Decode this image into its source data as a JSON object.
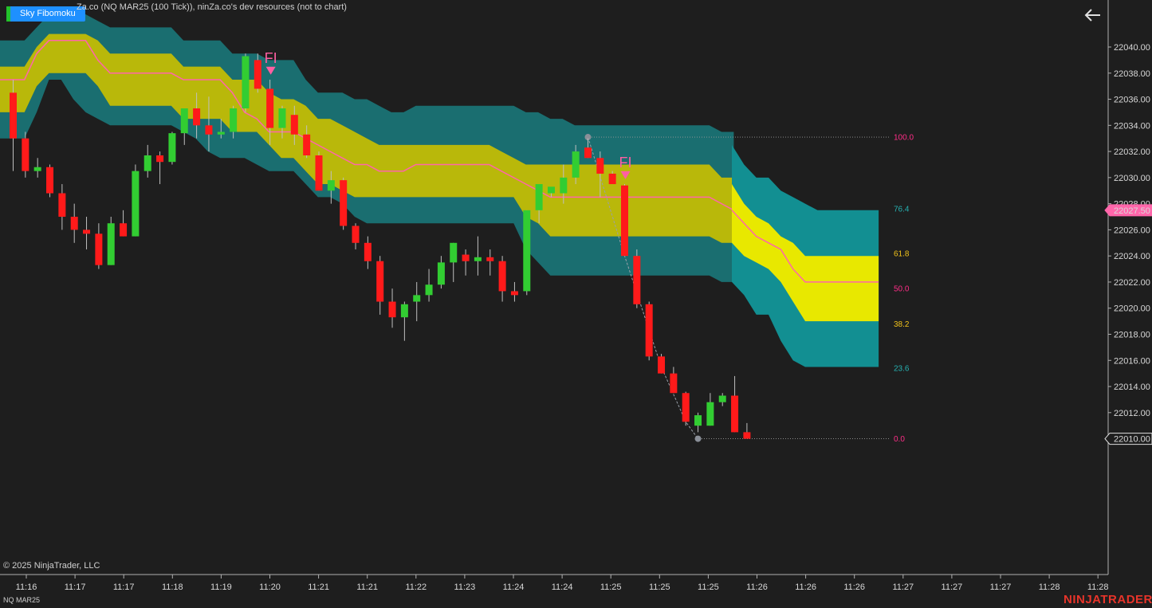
{
  "header": {
    "indicator_button": "Sky Fibomoku",
    "series_title": "Za.co (NQ MAR25 (100 Tick)), ninZa.co's dev resources (not to chart)",
    "back_icon": "arrow-left-icon"
  },
  "footer": {
    "copyright": "© 2025 NinjaTrader, LLC",
    "instrument": "NQ MAR25",
    "brand": "NINJATRADER"
  },
  "colors": {
    "background": "#1e1e1e",
    "up_candle": "#32cd32",
    "down_candle": "#ff1a1a",
    "wick": "#bfbfbf",
    "cloud_outer": "#1a6e70",
    "cloud_outer_projected": "#128f92",
    "cloud_inner": "#b9b80a",
    "cloud_inner_projected": "#e8e800",
    "base_line": "#ff66aa",
    "fib_100": "#ff2d87",
    "fib_76": "#26b0b0",
    "fib_61": "#f2c31a",
    "fib_50": "#ff2d87",
    "fib_38": "#f2c31a",
    "fib_23": "#26b0b0",
    "fib_0": "#ff2d87",
    "fi_marker": "#ff5fa2",
    "price_marker": "#ff66aa",
    "brand": "#e8342a"
  },
  "chart_data": {
    "type": "candlestick",
    "ylim": [
      21999.6,
      22043.6
    ],
    "y_ticks": [
      22010,
      22012,
      22014,
      22016,
      22018,
      22020,
      22022,
      22024,
      22026,
      22028,
      22030,
      22032,
      22034,
      22036,
      22038,
      22040
    ],
    "y_tick_labels": [
      "22010.00",
      "22012.00",
      "22014.00",
      "22016.00",
      "22018.00",
      "22020.00",
      "22022.00",
      "22024.00",
      "22026.00",
      "22028.00",
      "22030.00",
      "22032.00",
      "22034.00",
      "22036.00",
      "22038.00",
      "22040.00"
    ],
    "x_tick_labels": [
      "11:16",
      "11:17",
      "11:17",
      "11:18",
      "11:19",
      "11:20",
      "11:21",
      "11:21",
      "11:22",
      "11:23",
      "11:24",
      "11:24",
      "11:25",
      "11:25",
      "11:25",
      "11:26",
      "11:26",
      "11:26",
      "11:27",
      "11:27",
      "11:27",
      "11:28",
      "11:28"
    ],
    "candles": [
      {
        "o": 22036.5,
        "h": 22037.5,
        "l": 22030.5,
        "c": 22033.0
      },
      {
        "o": 22033.0,
        "h": 22033.5,
        "l": 22030.0,
        "c": 22030.5
      },
      {
        "o": 22030.5,
        "h": 22031.5,
        "l": 22030.0,
        "c": 22030.8
      },
      {
        "o": 22030.8,
        "h": 22031.0,
        "l": 22028.5,
        "c": 22028.8
      },
      {
        "o": 22028.8,
        "h": 22029.5,
        "l": 22026.0,
        "c": 22027.0
      },
      {
        "o": 22027.0,
        "h": 22028.0,
        "l": 22025.0,
        "c": 22026.0
      },
      {
        "o": 22026.0,
        "h": 22027.0,
        "l": 22024.5,
        "c": 22025.7
      },
      {
        "o": 22025.7,
        "h": 22026.5,
        "l": 22023.0,
        "c": 22023.3
      },
      {
        "o": 22023.3,
        "h": 22027.0,
        "l": 22023.3,
        "c": 22026.5
      },
      {
        "o": 22026.5,
        "h": 22027.5,
        "l": 22025.5,
        "c": 22025.5
      },
      {
        "o": 22025.5,
        "h": 22031.0,
        "l": 22025.5,
        "c": 22030.5
      },
      {
        "o": 22030.5,
        "h": 22032.5,
        "l": 22030.0,
        "c": 22031.7
      },
      {
        "o": 22031.7,
        "h": 22032.0,
        "l": 22029.5,
        "c": 22031.2
      },
      {
        "o": 22031.2,
        "h": 22033.5,
        "l": 22031.0,
        "c": 22033.4
      },
      {
        "o": 22033.4,
        "h": 22035.0,
        "l": 22032.5,
        "c": 22035.3
      },
      {
        "o": 22035.3,
        "h": 22036.5,
        "l": 22033.0,
        "c": 22034.0
      },
      {
        "o": 22034.0,
        "h": 22036.2,
        "l": 22032.0,
        "c": 22033.3
      },
      {
        "o": 22033.3,
        "h": 22034.5,
        "l": 22033.0,
        "c": 22033.5
      },
      {
        "o": 22033.5,
        "h": 22035.5,
        "l": 22033.0,
        "c": 22035.3
      },
      {
        "o": 22035.3,
        "h": 22039.5,
        "l": 22035.0,
        "c": 22039.3
      },
      {
        "o": 22039.0,
        "h": 22039.5,
        "l": 22036.5,
        "c": 22036.8
      },
      {
        "o": 22036.8,
        "h": 22037.5,
        "l": 22032.5,
        "c": 22033.8
      },
      {
        "o": 22033.8,
        "h": 22035.5,
        "l": 22033.0,
        "c": 22035.3
      },
      {
        "o": 22034.8,
        "h": 22035.5,
        "l": 22032.5,
        "c": 22033.3
      },
      {
        "o": 22033.3,
        "h": 22034.0,
        "l": 22031.5,
        "c": 22031.7
      },
      {
        "o": 22031.7,
        "h": 22032.0,
        "l": 22029.0,
        "c": 22029.0
      },
      {
        "o": 22029.0,
        "h": 22030.5,
        "l": 22028.0,
        "c": 22029.8
      },
      {
        "o": 22029.8,
        "h": 22030.0,
        "l": 22026.0,
        "c": 22026.3
      },
      {
        "o": 22026.3,
        "h": 22026.5,
        "l": 22024.5,
        "c": 22025.0
      },
      {
        "o": 22025.0,
        "h": 22025.5,
        "l": 22023.0,
        "c": 22023.6
      },
      {
        "o": 22023.6,
        "h": 22024.0,
        "l": 22019.5,
        "c": 22020.5
      },
      {
        "o": 22020.5,
        "h": 22021.5,
        "l": 22018.5,
        "c": 22019.3
      },
      {
        "o": 22019.3,
        "h": 22020.5,
        "l": 22017.5,
        "c": 22020.3
      },
      {
        "o": 22020.5,
        "h": 22022.0,
        "l": 22019.0,
        "c": 22021.0
      },
      {
        "o": 22021.0,
        "h": 22023.0,
        "l": 22020.5,
        "c": 22021.8
      },
      {
        "o": 22021.8,
        "h": 22024.0,
        "l": 22021.5,
        "c": 22023.5
      },
      {
        "o": 22023.5,
        "h": 22025.0,
        "l": 22022.0,
        "c": 22025.0
      },
      {
        "o": 22024.1,
        "h": 22024.5,
        "l": 22022.5,
        "c": 22023.6
      },
      {
        "o": 22023.6,
        "h": 22025.5,
        "l": 22022.5,
        "c": 22023.9
      },
      {
        "o": 22023.9,
        "h": 22024.5,
        "l": 22022.5,
        "c": 22023.6
      },
      {
        "o": 22023.6,
        "h": 22024.0,
        "l": 22020.5,
        "c": 22021.3
      },
      {
        "o": 22021.3,
        "h": 22022.0,
        "l": 22020.5,
        "c": 22021.0
      },
      {
        "o": 22021.3,
        "h": 22027.5,
        "l": 22021.0,
        "c": 22027.5
      },
      {
        "o": 22027.5,
        "h": 22029.5,
        "l": 22026.5,
        "c": 22029.5
      },
      {
        "o": 22028.8,
        "h": 22029.0,
        "l": 22028.5,
        "c": 22029.3
      },
      {
        "o": 22028.8,
        "h": 22031.0,
        "l": 22028.0,
        "c": 22030.0
      },
      {
        "o": 22030.0,
        "h": 22032.5,
        "l": 22029.5,
        "c": 22032.0
      },
      {
        "o": 22032.3,
        "h": 22033.0,
        "l": 22031.5,
        "c": 22031.5
      },
      {
        "o": 22031.5,
        "h": 22032.0,
        "l": 22028.5,
        "c": 22030.3
      },
      {
        "o": 22030.3,
        "h": 22030.5,
        "l": 22029.5,
        "c": 22029.5
      },
      {
        "o": 22029.4,
        "h": 22029.5,
        "l": 22024.0,
        "c": 22024.0
      },
      {
        "o": 22024.0,
        "h": 22024.5,
        "l": 22020.0,
        "c": 22020.3
      },
      {
        "o": 22020.3,
        "h": 22020.5,
        "l": 22016.0,
        "c": 22016.3
      },
      {
        "o": 22016.3,
        "h": 22016.5,
        "l": 22015.0,
        "c": 22015.0
      },
      {
        "o": 22015.0,
        "h": 22015.5,
        "l": 22013.5,
        "c": 22013.5
      },
      {
        "o": 22013.5,
        "h": 22013.6,
        "l": 22011.0,
        "c": 22011.3
      },
      {
        "o": 22011.0,
        "h": 22012.0,
        "l": 22010.5,
        "c": 22011.8
      },
      {
        "o": 22011.0,
        "h": 22013.5,
        "l": 22011.0,
        "c": 22012.8
      },
      {
        "o": 22012.8,
        "h": 22013.5,
        "l": 22012.5,
        "c": 22013.3
      },
      {
        "o": 22013.3,
        "h": 22014.8,
        "l": 22010.5,
        "c": 22010.5
      },
      {
        "o": 22010.5,
        "h": 22011.2,
        "l": 22010.0,
        "c": 22010.0
      }
    ],
    "cloud": {
      "outer_top": [
        22040.5,
        22040.5,
        22040.5,
        22041.5,
        22042.5,
        22042.5,
        22042.5,
        22042.5,
        22042.0,
        22041.5,
        22041.5,
        22041.5,
        22041.5,
        22041.5,
        22041.5,
        22040.5,
        22040.5,
        22040.5,
        22040.5,
        22039.5,
        22039.5,
        22039.5,
        22039.0,
        22039.0,
        22039.0,
        22037.5,
        22036.5,
        22036.5,
        22036.5,
        22036.0,
        22036.0,
        22035.5,
        22035.0,
        22035.0,
        22035.5,
        22035.5,
        22035.5,
        22035.5,
        22035.5,
        22035.5,
        22035.5,
        22035.5,
        22035.5,
        22035.0,
        22035.0,
        22034.5,
        22034.5,
        22034.0,
        22034.0,
        22034.0,
        22034.0,
        22034.0,
        22034.0,
        22034.0,
        22034.0,
        22034.0,
        22034.0,
        22034.0,
        22034.0,
        22033.5,
        22033.5
      ],
      "inner_top": [
        22038.5,
        22038.5,
        22038.5,
        22040.0,
        22041.0,
        22041.0,
        22041.0,
        22041.0,
        22040.5,
        22039.5,
        22039.5,
        22039.5,
        22039.5,
        22039.5,
        22039.5,
        22038.5,
        22038.5,
        22038.5,
        22038.5,
        22037.5,
        22037.5,
        22037.5,
        22036.5,
        22036.0,
        22036.0,
        22035.5,
        22034.5,
        22034.5,
        22034.0,
        22033.5,
        22033.0,
        22032.5,
        22032.5,
        22032.5,
        22032.5,
        22032.5,
        22032.5,
        22032.5,
        22032.5,
        22032.5,
        22032.5,
        22032.0,
        22031.5,
        22031.0,
        22031.0,
        22031.0,
        22031.0,
        22031.0,
        22031.0,
        22031.0,
        22031.0,
        22031.0,
        22031.0,
        22031.0,
        22031.0,
        22031.0,
        22031.0,
        22031.0,
        22031.0,
        22030.0,
        22030.0
      ],
      "base": [
        22037.5,
        22037.5,
        22037.5,
        22039.5,
        22040.5,
        22040.5,
        22040.5,
        22040.5,
        22039.0,
        22038.0,
        22038.0,
        22038.0,
        22038.0,
        22038.0,
        22038.0,
        22037.5,
        22037.5,
        22037.5,
        22037.5,
        22036.5,
        22035.0,
        22034.5,
        22033.5,
        22033.5,
        22033.5,
        22033.0,
        22032.5,
        22032.0,
        22031.5,
        22031.0,
        22031.0,
        22030.5,
        22030.5,
        22030.5,
        22031.0,
        22031.0,
        22031.0,
        22031.0,
        22031.0,
        22031.0,
        22031.0,
        22030.5,
        22030.0,
        22029.5,
        22029.0,
        22028.5,
        22028.5,
        22028.5,
        22028.5,
        22028.5,
        22028.5,
        22028.5,
        22028.5,
        22028.5,
        22028.5,
        22028.5,
        22028.5,
        22028.5,
        22028.5,
        22028.0,
        22027.5
      ],
      "inner_bottom": [
        22035.0,
        22035.0,
        22035.0,
        22037.0,
        22038.0,
        22038.0,
        22038.0,
        22038.0,
        22037.0,
        22035.5,
        22035.5,
        22035.5,
        22035.5,
        22035.5,
        22035.5,
        22034.5,
        22034.5,
        22034.5,
        22034.5,
        22033.5,
        22033.5,
        22033.5,
        22032.5,
        22031.5,
        22031.5,
        22030.5,
        22029.5,
        22029.5,
        22029.0,
        22028.5,
        22028.5,
        22028.5,
        22028.5,
        22028.5,
        22028.5,
        22028.5,
        22028.5,
        22028.5,
        22028.5,
        22028.5,
        22028.5,
        22028.5,
        22028.5,
        22027.0,
        22026.5,
        22025.5,
        22025.5,
        22025.5,
        22025.5,
        22025.5,
        22025.5,
        22025.5,
        22025.5,
        22025.5,
        22025.5,
        22025.5,
        22025.5,
        22025.5,
        22025.5,
        22025.0,
        22025.0
      ],
      "outer_bottom": [
        22033.0,
        22033.0,
        22033.0,
        22035.0,
        22037.5,
        22037.5,
        22036.0,
        22035.0,
        22034.5,
        22034.0,
        22034.0,
        22034.0,
        22034.0,
        22034.0,
        22034.0,
        22033.5,
        22033.0,
        22032.0,
        22031.5,
        22031.5,
        22031.5,
        22031.0,
        22030.5,
        22030.5,
        22030.5,
        22029.5,
        22028.5,
        22028.5,
        22028.0,
        22027.0,
        22026.5,
        22026.5,
        22026.5,
        22026.5,
        22026.5,
        22026.5,
        22026.5,
        22026.5,
        22026.5,
        22026.5,
        22026.5,
        22026.5,
        22026.5,
        22024.5,
        22023.5,
        22022.5,
        22022.5,
        22022.5,
        22022.5,
        22022.5,
        22022.5,
        22022.5,
        22022.5,
        22022.5,
        22022.5,
        22022.5,
        22022.5,
        22022.5,
        22022.5,
        22022.0,
        22022.0
      ],
      "projected_outer_top": [
        22032.5,
        22031.0,
        22030.0,
        22030.0,
        22029.0,
        22028.5,
        22028.0,
        22027.5,
        22027.5,
        22027.5,
        22027.5,
        22027.5,
        22027.5
      ],
      "projected_inner_top": [
        22029.5,
        22028.0,
        22027.0,
        22026.5,
        22025.5,
        22025.0,
        22024.0,
        22024.0,
        22024.0,
        22024.0,
        22024.0,
        22024.0,
        22024.0
      ],
      "projected_base": [
        22027.5,
        22026.5,
        22025.5,
        22025.0,
        22024.5,
        22023.0,
        22022.0,
        22022.0,
        22022.0,
        22022.0,
        22022.0,
        22022.0,
        22022.0
      ],
      "projected_inner_bottom": [
        22025.0,
        22024.0,
        22023.5,
        22023.0,
        22022.0,
        22020.5,
        22019.0,
        22019.0,
        22019.0,
        22019.0,
        22019.0,
        22019.0,
        22019.0
      ],
      "projected_outer_bottom": [
        22022.0,
        22021.0,
        22019.5,
        22019.5,
        22017.5,
        22016.0,
        22015.5,
        22015.5,
        22015.5,
        22015.5,
        22015.5,
        22015.5,
        22015.5
      ]
    },
    "fib_levels": [
      {
        "label": "100.0",
        "price": 22033.1,
        "color_key": "fib_100",
        "dotted": true
      },
      {
        "label": "76.4",
        "price": 22027.6,
        "color_key": "fib_76",
        "dotted": false
      },
      {
        "label": "61.8",
        "price": 22024.2,
        "color_key": "fib_61",
        "dotted": false
      },
      {
        "label": "50.0",
        "price": 22021.5,
        "color_key": "fib_50",
        "dotted": false
      },
      {
        "label": "38.2",
        "price": 22018.8,
        "color_key": "fib_38",
        "dotted": false
      },
      {
        "label": "23.6",
        "price": 22015.4,
        "color_key": "fib_23",
        "dotted": false
      },
      {
        "label": "0.0",
        "price": 22010.0,
        "color_key": "fib_0",
        "dotted": true
      }
    ],
    "swing_path": [
      {
        "bar": 47,
        "price": 22033.1
      },
      {
        "bar": 50,
        "price": 22024.0
      },
      {
        "bar": 53,
        "price": 22015.5
      },
      {
        "bar": 55,
        "price": 22011.3
      },
      {
        "bar": 56,
        "price": 22010.0
      }
    ],
    "fi_markers": [
      {
        "label": "FI",
        "bar": 21,
        "price": 22038.0
      },
      {
        "label": "FI",
        "bar": 50,
        "price": 22030.0
      }
    ],
    "price_markers": [
      {
        "label": "22027.50",
        "price": 22027.5,
        "style": "highlight"
      },
      {
        "label": "22010.00",
        "price": 22010.0,
        "style": "outline"
      }
    ]
  }
}
